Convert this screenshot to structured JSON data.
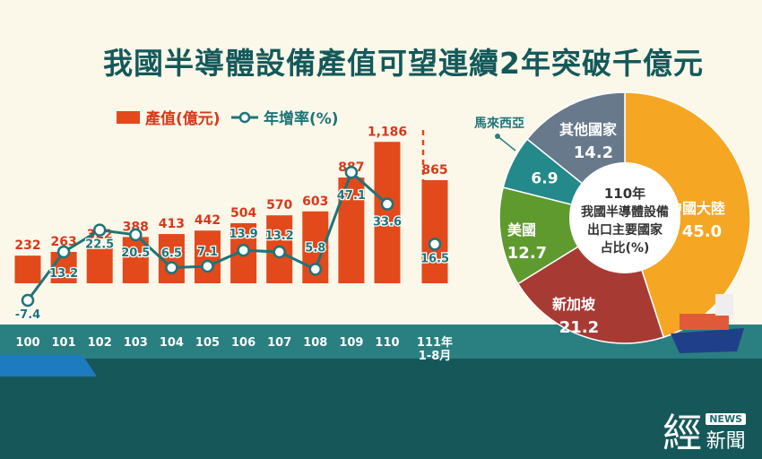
{
  "title": "我國半導體設備產值可望連續2年突破千億元",
  "legend": {
    "bar": "產值(億元)",
    "line": "年增率(%)"
  },
  "chart_data": [
    {
      "type": "bar+line",
      "categories": [
        "100",
        "101",
        "102",
        "103",
        "104",
        "105",
        "106",
        "107",
        "108",
        "109",
        "110",
        "111年 1-8月"
      ],
      "series": [
        {
          "name": "產值(億元)",
          "type": "bar",
          "values": [
            232,
            263,
            322,
            388,
            413,
            442,
            504,
            570,
            603,
            887,
            1186,
            865
          ],
          "labels": [
            "232",
            "263",
            "322",
            "388",
            "413",
            "442",
            "504",
            "570",
            "603",
            "887",
            "1,186",
            "865"
          ],
          "color": "#e2491b"
        },
        {
          "name": "年增率(%)",
          "type": "line",
          "values": [
            -7.4,
            13.2,
            22.5,
            20.5,
            6.5,
            7.1,
            13.9,
            13.2,
            5.8,
            47.1,
            33.6,
            16.5
          ],
          "color": "#1d7478"
        }
      ]
    },
    {
      "type": "pie",
      "title": [
        "110年",
        "我國半導體設備",
        "出口主要國家",
        "占比(%)"
      ],
      "slices": [
        {
          "label": "中國大陸",
          "value": 45.0,
          "color": "#f5a623"
        },
        {
          "label": "新加坡",
          "value": 21.2,
          "color": "#a83a34"
        },
        {
          "label": "美國",
          "value": 12.7,
          "color": "#5f9a2e"
        },
        {
          "label": "馬來西亞",
          "value": 6.9,
          "color": "#23898a"
        },
        {
          "label": "其他國家",
          "value": 14.2,
          "color": "#67798a"
        }
      ]
    }
  ],
  "logo": {
    "main": "經",
    "tag": "NEWS",
    "sub": "新聞"
  }
}
